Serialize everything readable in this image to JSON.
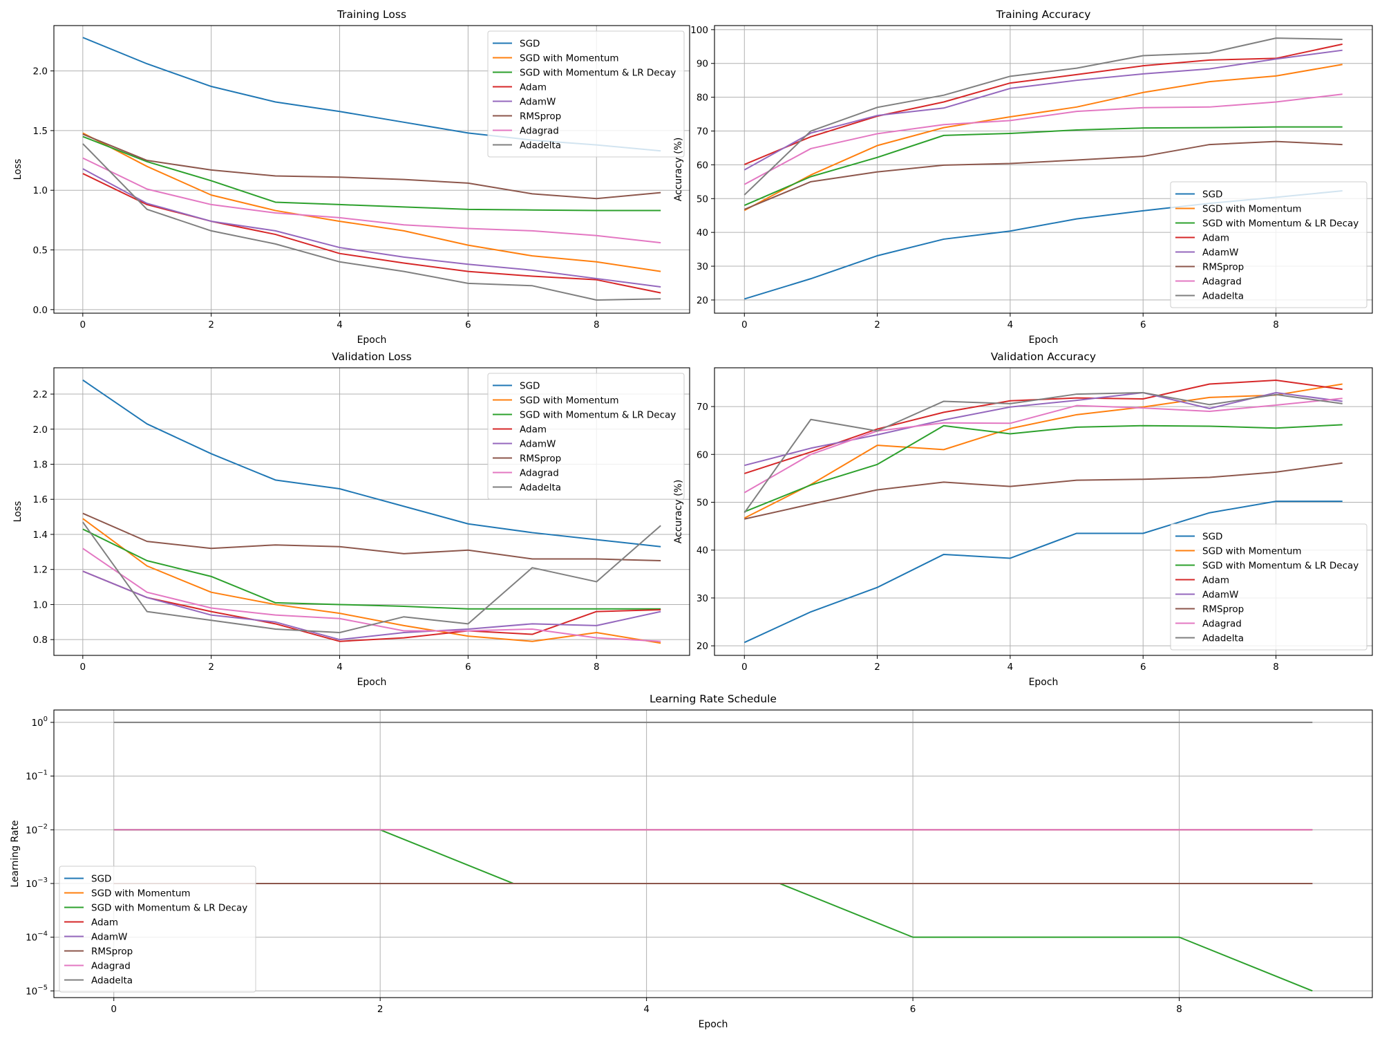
{
  "chart_data": [
    {
      "type": "line",
      "title": "Training Loss",
      "xlabel": "Epoch",
      "ylabel": "Loss",
      "x": [
        0,
        1,
        2,
        3,
        4,
        5,
        6,
        7,
        8,
        9
      ],
      "xlim": [
        -0.45,
        9.45
      ],
      "ylim": [
        -0.03,
        2.38
      ],
      "yscale": "linear",
      "xticks": [
        0,
        2,
        4,
        6,
        8
      ],
      "yticks": [
        0.0,
        0.5,
        1.0,
        1.5,
        2.0
      ],
      "ytick_decimals": 1,
      "grid": true,
      "legend_position": "upper right",
      "series": [
        {
          "name": "SGD",
          "color": "#1f77b4",
          "values": [
            2.28,
            2.06,
            1.87,
            1.74,
            1.66,
            1.57,
            1.48,
            1.42,
            1.38,
            1.33
          ]
        },
        {
          "name": "SGD with Momentum",
          "color": "#ff7f0e",
          "values": [
            1.48,
            1.2,
            0.96,
            0.83,
            0.74,
            0.66,
            0.54,
            0.45,
            0.4,
            0.32
          ]
        },
        {
          "name": "SGD with Momentum & LR Decay",
          "color": "#2ca02c",
          "values": [
            1.45,
            1.24,
            1.08,
            0.9,
            0.88,
            0.86,
            0.84,
            0.835,
            0.83,
            0.83
          ]
        },
        {
          "name": "Adam",
          "color": "#d62728",
          "values": [
            1.14,
            0.88,
            0.74,
            0.63,
            0.47,
            0.39,
            0.32,
            0.28,
            0.25,
            0.14
          ]
        },
        {
          "name": "AdamW",
          "color": "#9467bd",
          "values": [
            1.18,
            0.89,
            0.74,
            0.66,
            0.52,
            0.44,
            0.38,
            0.33,
            0.26,
            0.19
          ]
        },
        {
          "name": "RMSprop",
          "color": "#8c564b",
          "values": [
            1.47,
            1.25,
            1.17,
            1.12,
            1.11,
            1.09,
            1.06,
            0.97,
            0.93,
            0.98
          ]
        },
        {
          "name": "Adagrad",
          "color": "#e377c2",
          "values": [
            1.27,
            1.01,
            0.88,
            0.81,
            0.77,
            0.71,
            0.68,
            0.66,
            0.62,
            0.56
          ]
        },
        {
          "name": "Adadelta",
          "color": "#7f7f7f",
          "values": [
            1.39,
            0.84,
            0.66,
            0.55,
            0.4,
            0.32,
            0.22,
            0.2,
            0.08,
            0.09
          ]
        }
      ]
    },
    {
      "type": "line",
      "title": "Training Accuracy",
      "xlabel": "Epoch",
      "ylabel": "Accuracy (%)",
      "x": [
        0,
        1,
        2,
        3,
        4,
        5,
        6,
        7,
        8,
        9
      ],
      "xlim": [
        -0.45,
        9.45
      ],
      "ylim": [
        16.1,
        101.2
      ],
      "yscale": "linear",
      "xticks": [
        0,
        2,
        4,
        6,
        8
      ],
      "yticks": [
        20,
        30,
        40,
        50,
        60,
        70,
        80,
        90,
        100
      ],
      "ytick_decimals": 0,
      "grid": true,
      "legend_position": "lower right",
      "series": [
        {
          "name": "SGD",
          "color": "#1f77b4",
          "values": [
            20.3,
            26.3,
            33.1,
            38.0,
            40.4,
            44.0,
            46.4,
            48.6,
            50.4,
            52.3
          ]
        },
        {
          "name": "SGD with Momentum",
          "color": "#ff7f0e",
          "values": [
            46.5,
            57.0,
            65.7,
            71.0,
            74.2,
            77.1,
            81.4,
            84.6,
            86.3,
            89.7
          ]
        },
        {
          "name": "SGD with Momentum & LR Decay",
          "color": "#2ca02c",
          "values": [
            48.0,
            56.5,
            62.2,
            68.7,
            69.3,
            70.3,
            70.9,
            71.0,
            71.2,
            71.2
          ]
        },
        {
          "name": "Adam",
          "color": "#d62728",
          "values": [
            60.1,
            68.3,
            74.4,
            78.6,
            84.2,
            86.7,
            89.3,
            91.0,
            91.5,
            95.7
          ]
        },
        {
          "name": "AdamW",
          "color": "#9467bd",
          "values": [
            58.5,
            69.4,
            74.6,
            76.8,
            82.6,
            85.0,
            86.9,
            88.4,
            91.3,
            93.9
          ]
        },
        {
          "name": "RMSprop",
          "color": "#8c564b",
          "values": [
            46.8,
            55.0,
            57.9,
            59.9,
            60.4,
            61.4,
            62.5,
            66.0,
            66.9,
            66.0
          ]
        },
        {
          "name": "Adagrad",
          "color": "#e377c2",
          "values": [
            54.2,
            64.8,
            69.2,
            71.9,
            73.1,
            75.8,
            76.9,
            77.1,
            78.6,
            80.9
          ]
        },
        {
          "name": "Adadelta",
          "color": "#7f7f7f",
          "values": [
            51.1,
            70.0,
            77.0,
            80.6,
            86.2,
            88.6,
            92.3,
            93.1,
            97.5,
            97.1
          ]
        }
      ]
    },
    {
      "type": "line",
      "title": "Validation Loss",
      "xlabel": "Epoch",
      "ylabel": "Loss",
      "x": [
        0,
        1,
        2,
        3,
        4,
        5,
        6,
        7,
        8,
        9
      ],
      "xlim": [
        -0.45,
        9.45
      ],
      "ylim": [
        0.71,
        2.35
      ],
      "yscale": "linear",
      "xticks": [
        0,
        2,
        4,
        6,
        8
      ],
      "yticks": [
        0.8,
        1.0,
        1.2,
        1.4,
        1.6,
        1.8,
        2.0,
        2.2
      ],
      "ytick_decimals": 1,
      "grid": true,
      "legend_position": "upper right",
      "series": [
        {
          "name": "SGD",
          "color": "#1f77b4",
          "values": [
            2.28,
            2.03,
            1.86,
            1.71,
            1.66,
            1.56,
            1.46,
            1.41,
            1.37,
            1.33
          ]
        },
        {
          "name": "SGD with Momentum",
          "color": "#ff7f0e",
          "values": [
            1.49,
            1.22,
            1.07,
            1.0,
            0.95,
            0.88,
            0.82,
            0.79,
            0.84,
            0.78
          ]
        },
        {
          "name": "SGD with Momentum & LR Decay",
          "color": "#2ca02c",
          "values": [
            1.43,
            1.25,
            1.16,
            1.01,
            1.0,
            0.99,
            0.975,
            0.975,
            0.975,
            0.975
          ]
        },
        {
          "name": "Adam",
          "color": "#d62728",
          "values": [
            1.19,
            1.04,
            0.96,
            0.89,
            0.79,
            0.81,
            0.85,
            0.83,
            0.96,
            0.97
          ]
        },
        {
          "name": "AdamW",
          "color": "#9467bd",
          "values": [
            1.19,
            1.04,
            0.94,
            0.9,
            0.8,
            0.84,
            0.86,
            0.89,
            0.88,
            0.96
          ]
        },
        {
          "name": "RMSprop",
          "color": "#8c564b",
          "values": [
            1.52,
            1.36,
            1.32,
            1.34,
            1.33,
            1.29,
            1.31,
            1.26,
            1.26,
            1.25
          ]
        },
        {
          "name": "Adagrad",
          "color": "#e377c2",
          "values": [
            1.32,
            1.07,
            0.98,
            0.94,
            0.92,
            0.85,
            0.85,
            0.86,
            0.81,
            0.79
          ]
        },
        {
          "name": "Adadelta",
          "color": "#7f7f7f",
          "values": [
            1.47,
            0.96,
            0.91,
            0.86,
            0.84,
            0.93,
            0.89,
            1.21,
            1.13,
            1.45
          ]
        }
      ]
    },
    {
      "type": "line",
      "title": "Validation Accuracy",
      "xlabel": "Epoch",
      "ylabel": "Accuracy (%)",
      "x": [
        0,
        1,
        2,
        3,
        4,
        5,
        6,
        7,
        8,
        9
      ],
      "xlim": [
        -0.45,
        9.45
      ],
      "ylim": [
        18.0,
        78.1
      ],
      "yscale": "linear",
      "xticks": [
        0,
        2,
        4,
        6,
        8
      ],
      "yticks": [
        20,
        30,
        40,
        50,
        60,
        70
      ],
      "ytick_decimals": 0,
      "grid": true,
      "legend_position": "lower right",
      "series": [
        {
          "name": "SGD",
          "color": "#1f77b4",
          "values": [
            20.7,
            27.1,
            32.2,
            39.1,
            38.3,
            43.5,
            43.5,
            47.8,
            50.2,
            50.2
          ]
        },
        {
          "name": "SGD with Momentum",
          "color": "#ff7f0e",
          "values": [
            46.7,
            53.7,
            61.9,
            61.0,
            65.4,
            68.3,
            69.9,
            71.9,
            72.4,
            74.7
          ]
        },
        {
          "name": "SGD with Momentum & LR Decay",
          "color": "#2ca02c",
          "values": [
            48.0,
            53.6,
            57.9,
            66.0,
            64.3,
            65.7,
            66.0,
            65.9,
            65.5,
            66.2
          ]
        },
        {
          "name": "Adam",
          "color": "#d62728",
          "values": [
            56.0,
            60.5,
            65.3,
            68.8,
            71.2,
            71.8,
            71.6,
            74.7,
            75.5,
            73.6
          ]
        },
        {
          "name": "AdamW",
          "color": "#9467bd",
          "values": [
            57.7,
            61.3,
            64.1,
            67.2,
            69.9,
            71.3,
            72.9,
            69.6,
            72.9,
            71.1
          ]
        },
        {
          "name": "RMSprop",
          "color": "#8c564b",
          "values": [
            46.5,
            49.6,
            52.6,
            54.2,
            53.3,
            54.6,
            54.8,
            55.2,
            56.3,
            58.2
          ]
        },
        {
          "name": "Adagrad",
          "color": "#e377c2",
          "values": [
            52.0,
            60.0,
            64.9,
            66.6,
            66.5,
            70.2,
            69.7,
            69.0,
            70.3,
            71.7
          ]
        },
        {
          "name": "Adadelta",
          "color": "#7f7f7f",
          "values": [
            47.8,
            67.3,
            64.9,
            71.1,
            70.6,
            72.6,
            72.9,
            70.4,
            72.5,
            70.6
          ]
        }
      ]
    },
    {
      "type": "line",
      "title": "Learning Rate Schedule",
      "xlabel": "Epoch",
      "ylabel": "Learning Rate",
      "x": [
        0,
        1,
        2,
        3,
        4,
        5,
        6,
        7,
        8,
        9
      ],
      "xlim": [
        -0.45,
        9.45
      ],
      "ylim": [
        7.5e-06,
        1.7
      ],
      "yscale": "log",
      "xticks": [
        0,
        2,
        4,
        6,
        8
      ],
      "yticks": [
        1e-05,
        0.0001,
        0.001,
        0.01,
        0.1,
        1
      ],
      "ytick_labels": [
        {
          "base": "10",
          "exp": "−5"
        },
        {
          "base": "10",
          "exp": "−4"
        },
        {
          "base": "10",
          "exp": "−3"
        },
        {
          "base": "10",
          "exp": "−2"
        },
        {
          "base": "10",
          "exp": "−1"
        },
        {
          "base": "10",
          "exp": "0"
        }
      ],
      "grid": true,
      "legend_position": "lower left",
      "series": [
        {
          "name": "SGD",
          "color": "#1f77b4",
          "values": [
            0.01,
            0.01,
            0.01,
            0.01,
            0.01,
            0.01,
            0.01,
            0.01,
            0.01,
            0.01
          ]
        },
        {
          "name": "SGD with Momentum",
          "color": "#ff7f0e",
          "values": [
            0.01,
            0.01,
            0.01,
            0.01,
            0.01,
            0.01,
            0.01,
            0.01,
            0.01,
            0.01
          ]
        },
        {
          "name": "SGD with Momentum & LR Decay",
          "color": "#2ca02c",
          "values": [
            0.01,
            0.01,
            0.01,
            0.001,
            0.001,
            0.001,
            0.0001,
            0.0001,
            0.0001,
            1e-05
          ]
        },
        {
          "name": "Adam",
          "color": "#d62728",
          "values": [
            0.001,
            0.001,
            0.001,
            0.001,
            0.001,
            0.001,
            0.001,
            0.001,
            0.001,
            0.001
          ]
        },
        {
          "name": "AdamW",
          "color": "#9467bd",
          "values": [
            0.001,
            0.001,
            0.001,
            0.001,
            0.001,
            0.001,
            0.001,
            0.001,
            0.001,
            0.001
          ]
        },
        {
          "name": "RMSprop",
          "color": "#8c564b",
          "values": [
            0.001,
            0.001,
            0.001,
            0.001,
            0.001,
            0.001,
            0.001,
            0.001,
            0.001,
            0.001
          ]
        },
        {
          "name": "Adagrad",
          "color": "#e377c2",
          "values": [
            0.01,
            0.01,
            0.01,
            0.01,
            0.01,
            0.01,
            0.01,
            0.01,
            0.01,
            0.01
          ]
        },
        {
          "name": "Adadelta",
          "color": "#7f7f7f",
          "values": [
            1.0,
            1.0,
            1.0,
            1.0,
            1.0,
            1.0,
            1.0,
            1.0,
            1.0,
            1.0
          ]
        }
      ]
    }
  ]
}
